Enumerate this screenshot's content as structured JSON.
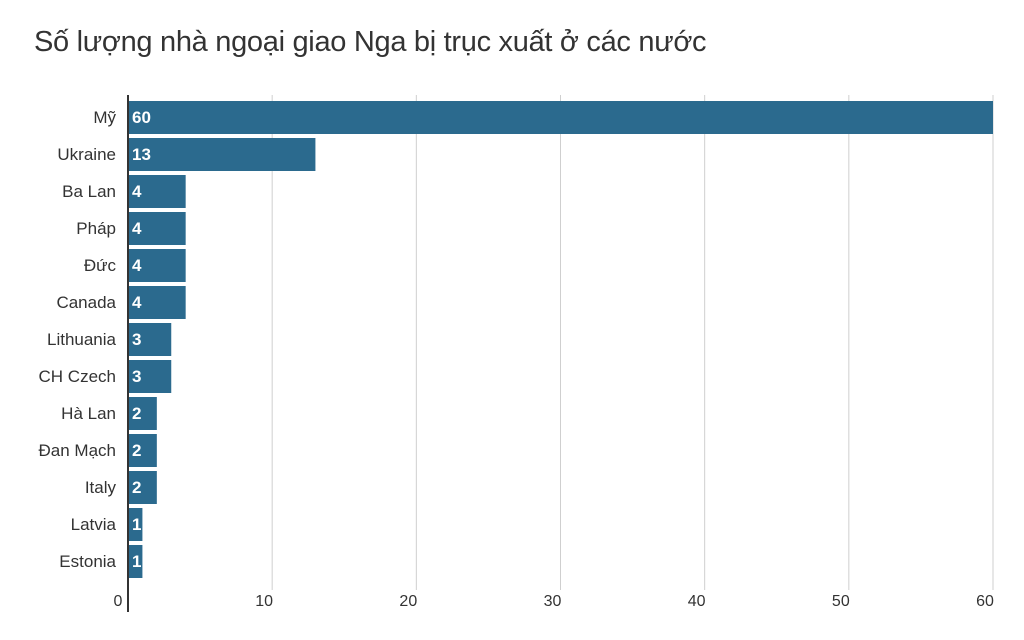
{
  "chart_data": {
    "type": "bar",
    "orientation": "horizontal",
    "title": "Số lượng nhà ngoại giao Nga bị trục xuất ở các nước",
    "categories": [
      "Mỹ",
      "Ukraine",
      "Ba Lan",
      "Pháp",
      "Đức",
      "Canada",
      "Lithuania",
      "CH Czech",
      "Hà Lan",
      "Đan Mạch",
      "Italy",
      "Latvia",
      "Estonia"
    ],
    "values": [
      60,
      13,
      4,
      4,
      4,
      4,
      3,
      3,
      2,
      2,
      2,
      1,
      1
    ],
    "xlim": [
      0,
      60
    ],
    "xticks": [
      "0",
      "10",
      "20",
      "30",
      "40",
      "50",
      "60"
    ],
    "grid": true,
    "bar_color": "#2b6a8e",
    "xlabel": "",
    "ylabel": ""
  }
}
